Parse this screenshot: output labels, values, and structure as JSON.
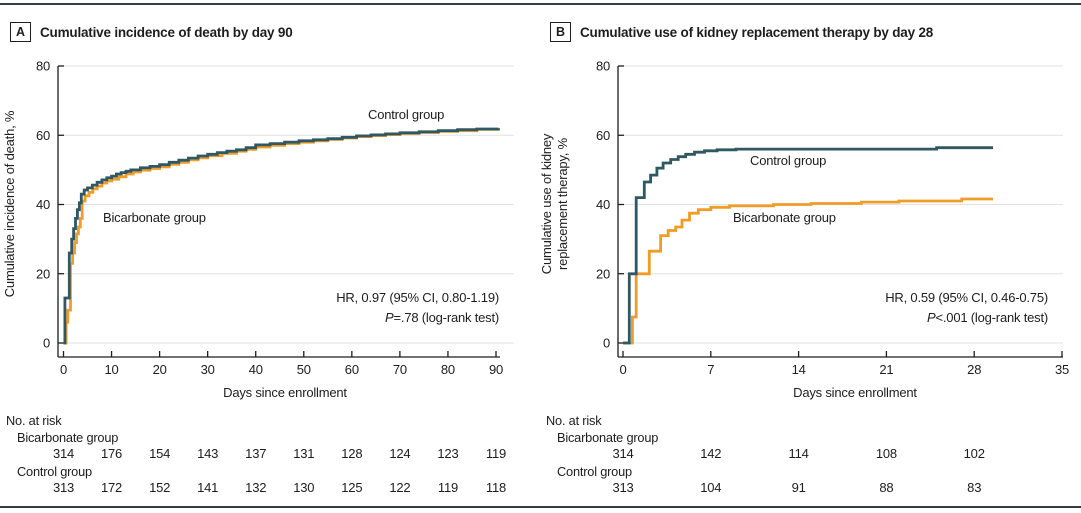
{
  "figure": {
    "x_axis_title": "Days since enrollment",
    "risk_heading": "No. at risk",
    "colors": {
      "control": "#2F5862",
      "bicarbonate": "#F09C28",
      "grid": "#e2e2e2",
      "axis": "#1d1d1d",
      "rule": "#333d45"
    }
  },
  "chart_data": [
    {
      "panel_label": "A",
      "title": "Cumulative incidence of death by day 90",
      "type": "line",
      "subtype": "step-after",
      "xlabel": "Days since enrollment",
      "ylabel": "Cumulative incidence of death, %",
      "ylabel_lines": [
        "Cumulative incidence of death, %"
      ],
      "xlim": [
        0,
        90
      ],
      "ylim": [
        0,
        80
      ],
      "x_ticks": [
        0,
        10,
        20,
        30,
        40,
        50,
        60,
        70,
        80,
        90
      ],
      "y_ticks": [
        0,
        20,
        40,
        60,
        80
      ],
      "grid": "horizontal",
      "legend": "inline-labels",
      "annotation": {
        "hr": "HR, 0.97 (95% CI, 0.80-1.19)",
        "p_label": "P",
        "p_rest": "=.78 (log-rank test)"
      },
      "series": [
        {
          "name": "Bicarbonate group",
          "color": "#F09C28",
          "points": [
            [
              0,
              0
            ],
            [
              0.55,
              6
            ],
            [
              0.9,
              9.5
            ],
            [
              1.45,
              23
            ],
            [
              1.9,
              26
            ],
            [
              2.3,
              29
            ],
            [
              2.7,
              31.5
            ],
            [
              3.1,
              33.5
            ],
            [
              3.5,
              36
            ],
            [
              3.9,
              41
            ],
            [
              4.5,
              42.5
            ],
            [
              5.3,
              43.5
            ],
            [
              6.1,
              44.5
            ],
            [
              7,
              45.3
            ],
            [
              8,
              46.2
            ],
            [
              9,
              46.8
            ],
            [
              10,
              47.3
            ],
            [
              11.5,
              48
            ],
            [
              13,
              48.8
            ],
            [
              14.5,
              49.4
            ],
            [
              16,
              49.9
            ],
            [
              18,
              50.4
            ],
            [
              20,
              50.9
            ],
            [
              22,
              51.6
            ],
            [
              24,
              52.2
            ],
            [
              26,
              52.9
            ],
            [
              28,
              53.5
            ],
            [
              30,
              54.1
            ],
            [
              33,
              54.8
            ],
            [
              36,
              55.4
            ],
            [
              38,
              55.9
            ],
            [
              40,
              56.6
            ],
            [
              43,
              57.1
            ],
            [
              46,
              57.6
            ],
            [
              49,
              58
            ],
            [
              52,
              58.4
            ],
            [
              55,
              58.8
            ],
            [
              58,
              59.2
            ],
            [
              61,
              59.6
            ],
            [
              64,
              59.9
            ],
            [
              67,
              60.2
            ],
            [
              70,
              60.5
            ],
            [
              74,
              60.8
            ],
            [
              78,
              61.1
            ],
            [
              82,
              61.3
            ],
            [
              86,
              61.7
            ],
            [
              90.5,
              62
            ]
          ]
        },
        {
          "name": "Control group",
          "color": "#2F5862",
          "points": [
            [
              0,
              0
            ],
            [
              0.3,
              13
            ],
            [
              1.2,
              26
            ],
            [
              1.7,
              30
            ],
            [
              2.1,
              33
            ],
            [
              2.5,
              36
            ],
            [
              2.9,
              38.5
            ],
            [
              3.3,
              40.5
            ],
            [
              3.7,
              43
            ],
            [
              4.3,
              44.2
            ],
            [
              5,
              44.8
            ],
            [
              6,
              45.6
            ],
            [
              7,
              46.4
            ],
            [
              8,
              47.1
            ],
            [
              9,
              47.7
            ],
            [
              10,
              48.2
            ],
            [
              11,
              48.8
            ],
            [
              12,
              49.2
            ],
            [
              13,
              49.6
            ],
            [
              14,
              50
            ],
            [
              16,
              50.6
            ],
            [
              18,
              51
            ],
            [
              20,
              51.5
            ],
            [
              22,
              52.2
            ],
            [
              24,
              52.8
            ],
            [
              26,
              53.4
            ],
            [
              28,
              54
            ],
            [
              30,
              54.5
            ],
            [
              32,
              55
            ],
            [
              34,
              55.4
            ],
            [
              36,
              55.8
            ],
            [
              38,
              56.4
            ],
            [
              40,
              57.2
            ],
            [
              43,
              57.6
            ],
            [
              46,
              58
            ],
            [
              49,
              58.4
            ],
            [
              52,
              58.7
            ],
            [
              55,
              59
            ],
            [
              58,
              59.4
            ],
            [
              61,
              59.8
            ],
            [
              64,
              60.1
            ],
            [
              67,
              60.4
            ],
            [
              70,
              60.7
            ],
            [
              74,
              61
            ],
            [
              78,
              61.3
            ],
            [
              82,
              61.6
            ],
            [
              86,
              61.8
            ],
            [
              90.5,
              62
            ]
          ]
        }
      ],
      "risk_table": {
        "heading": "No. at risk",
        "days": [
          0,
          10,
          20,
          30,
          40,
          50,
          60,
          70,
          80,
          90
        ],
        "rows": [
          {
            "label": "Bicarbonate group",
            "values": [
              314,
              176,
              154,
              143,
              137,
              131,
              128,
              124,
              123,
              119
            ]
          },
          {
            "label": "Control group",
            "values": [
              313,
              172,
              152,
              141,
              132,
              130,
              125,
              122,
              119,
              118
            ]
          }
        ]
      }
    },
    {
      "panel_label": "B",
      "title": "Cumulative use of kidney replacement therapy by day 28",
      "type": "line",
      "subtype": "step-after",
      "xlabel": "Days since enrollment",
      "ylabel": "Cumulative use of kidney replacement therapy, %",
      "ylabel_lines": [
        "Cumulative use of kidney",
        "replacement therapy, %"
      ],
      "xlim": [
        0,
        35
      ],
      "ylim": [
        0,
        80
      ],
      "x_ticks": [
        0,
        7,
        14,
        21,
        28,
        35
      ],
      "y_ticks": [
        0,
        20,
        40,
        60,
        80
      ],
      "grid": "horizontal",
      "legend": "inline-labels",
      "annotation": {
        "hr": "HR, 0.59 (95% CI, 0.46-0.75)",
        "p_label": "P",
        "p_rest": "<.001 (log-rank test)"
      },
      "series": [
        {
          "name": "Bicarbonate group",
          "color": "#F09C28",
          "points": [
            [
              0,
              0
            ],
            [
              0.75,
              7.5
            ],
            [
              1.05,
              20
            ],
            [
              2.1,
              26.5
            ],
            [
              3,
              31
            ],
            [
              3.6,
              32.5
            ],
            [
              4.2,
              33.5
            ],
            [
              4.7,
              35.5
            ],
            [
              5.3,
              37.5
            ],
            [
              6,
              38.5
            ],
            [
              7,
              39.2
            ],
            [
              8.5,
              39.6
            ],
            [
              12,
              40
            ],
            [
              15,
              40.3
            ],
            [
              19,
              40.7
            ],
            [
              22,
              41
            ],
            [
              27,
              41.6
            ],
            [
              29.5,
              41.6
            ]
          ]
        },
        {
          "name": "Control group",
          "color": "#2F5862",
          "points": [
            [
              0,
              0
            ],
            [
              0.5,
              20
            ],
            [
              1.05,
              42
            ],
            [
              1.7,
              46.5
            ],
            [
              2.2,
              48.5
            ],
            [
              2.7,
              50.5
            ],
            [
              3.2,
              52
            ],
            [
              3.8,
              53
            ],
            [
              4.4,
              53.8
            ],
            [
              5,
              54.5
            ],
            [
              5.7,
              55.1
            ],
            [
              6.5,
              55.5
            ],
            [
              7.5,
              55.8
            ],
            [
              9,
              56
            ],
            [
              25,
              56.4
            ],
            [
              29.5,
              56.4
            ]
          ]
        }
      ],
      "risk_table": {
        "heading": "No. at risk",
        "days": [
          0,
          7,
          14,
          21,
          28
        ],
        "rows": [
          {
            "label": "Bicarbonate group",
            "values": [
              314,
              142,
              114,
              108,
              102
            ]
          },
          {
            "label": "Control group",
            "values": [
              313,
              104,
              91,
              88,
              83
            ]
          }
        ]
      }
    }
  ]
}
